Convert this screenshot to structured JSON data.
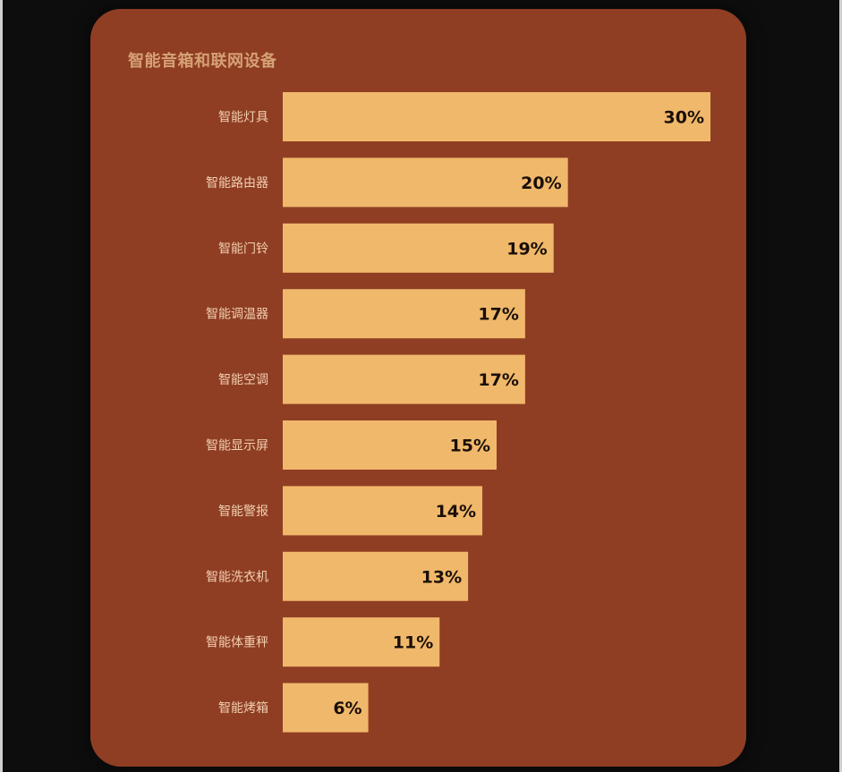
{
  "chart_data": {
    "type": "bar",
    "orientation": "horizontal",
    "title": "智能音箱和联网设备",
    "categories": [
      "智能灯具",
      "智能路由器",
      "智能门铃",
      "智能调温器",
      "智能空调",
      "智能显示屏",
      "智能警报",
      "智能洗衣机",
      "智能体重秤",
      "智能烤箱"
    ],
    "values": [
      30,
      20,
      19,
      17,
      17,
      15,
      14,
      13,
      11,
      6
    ],
    "value_labels": [
      "30%",
      "20%",
      "19%",
      "17%",
      "17%",
      "15%",
      "14%",
      "13%",
      "11%",
      "6%"
    ],
    "unit": "%",
    "xlim": [
      0,
      30
    ],
    "grid": false,
    "colors": {
      "background": "#8f3e24",
      "bar": "#f0b86b",
      "value_text": "#1a0f08",
      "category_text": "#f2cfb0"
    }
  }
}
